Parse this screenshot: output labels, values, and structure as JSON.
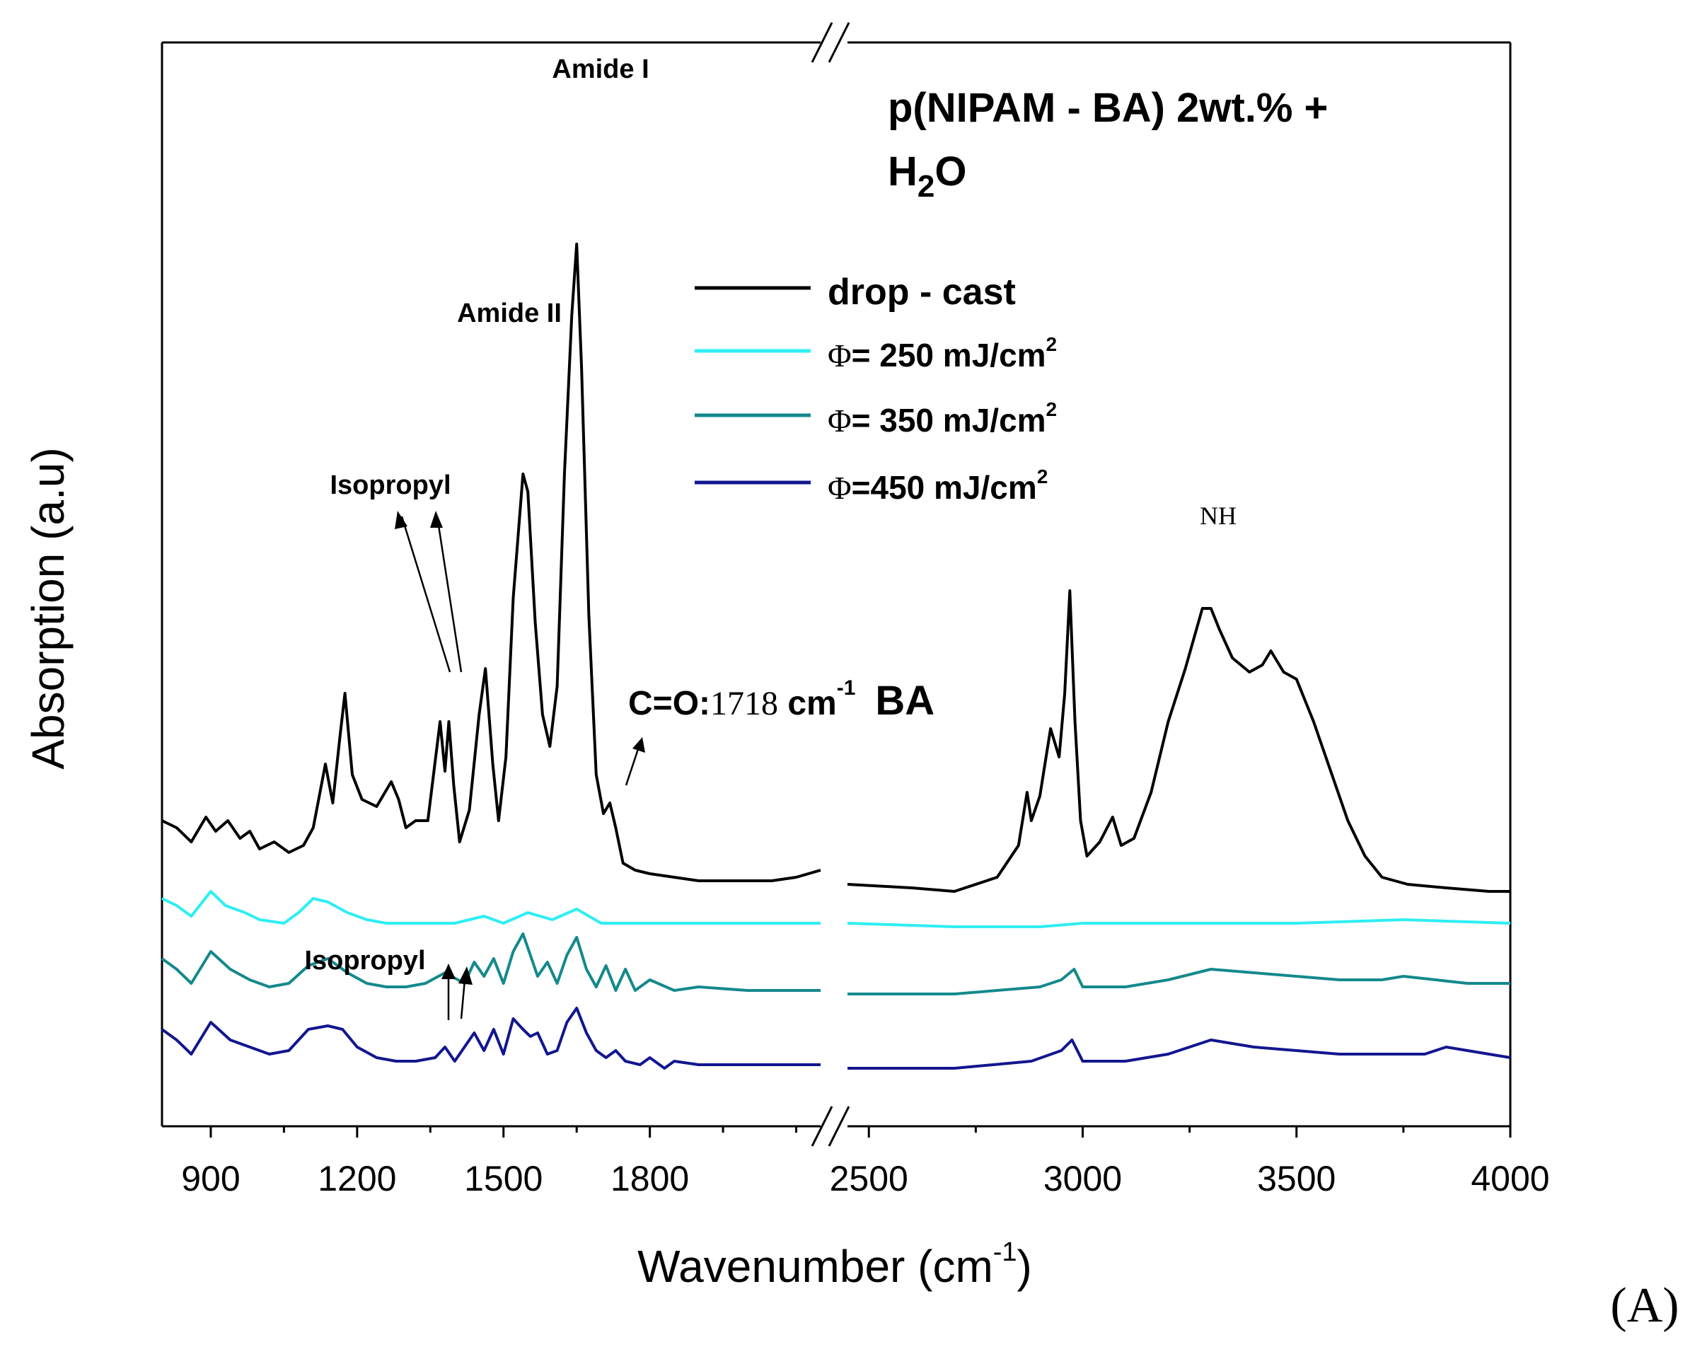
{
  "chart_data": {
    "type": "line",
    "title_line1": "p(NIPAM - BA) 2wt.% +",
    "title_line2": {
      "h": "H",
      "sub": "2",
      "o": "O"
    },
    "xlabel": {
      "text": "Wavenumber (cm",
      "sup": "-1",
      "close": ")"
    },
    "ylabel": "Absorption (a.u)",
    "panel_label": "(A)",
    "x_segments": [
      {
        "xlim": [
          800,
          2150
        ],
        "ticks": [
          900,
          1200,
          1500,
          1800
        ],
        "minor": [
          1050,
          1350,
          1650,
          1950,
          2100
        ]
      },
      {
        "xlim": [
          2450,
          4000
        ],
        "ticks": [
          2500,
          3000,
          3500,
          4000
        ],
        "minor": [
          2750,
          3250,
          3750
        ]
      }
    ],
    "tick_labels": [
      "900",
      "1200",
      "1500",
      "1800",
      "2500",
      "3000",
      "3500",
      "4000"
    ],
    "axis_break": "//",
    "legend": [
      {
        "name": "drop - cast",
        "color": "#000000"
      },
      {
        "phi": "Φ",
        "text": "= 250 mJ/cm",
        "sup": "2",
        "color": "#2EEEF4"
      },
      {
        "phi": "Φ",
        "text": "= 350 mJ/cm",
        "sup": "2",
        "color": "#14898C"
      },
      {
        "phi": "Φ",
        "text": "=450 mJ/cm",
        "sup": "2",
        "color": "#12168F"
      }
    ],
    "annotations": {
      "amide_i": "Amide I",
      "amide_ii": "Amide II",
      "isopropyl_top": "Isopropyl",
      "isopropyl_bottom": "Isopropyl",
      "nh": "NH",
      "co_label": "C=O:",
      "co_value": "1718",
      "co_unit": " cm",
      "co_sup": "-1",
      "co_ba": "BA"
    },
    "series": [
      {
        "name": "drop - cast",
        "color": "#000000",
        "baseline": 0.0,
        "points": [
          [
            800,
            0.12
          ],
          [
            830,
            0.1
          ],
          [
            860,
            0.06
          ],
          [
            890,
            0.13
          ],
          [
            910,
            0.09
          ],
          [
            935,
            0.12
          ],
          [
            960,
            0.07
          ],
          [
            980,
            0.09
          ],
          [
            1000,
            0.04
          ],
          [
            1030,
            0.06
          ],
          [
            1060,
            0.03
          ],
          [
            1090,
            0.05
          ],
          [
            1110,
            0.1
          ],
          [
            1135,
            0.28
          ],
          [
            1150,
            0.17
          ],
          [
            1165,
            0.36
          ],
          [
            1175,
            0.48
          ],
          [
            1190,
            0.25
          ],
          [
            1210,
            0.18
          ],
          [
            1240,
            0.16
          ],
          [
            1270,
            0.23
          ],
          [
            1285,
            0.18
          ],
          [
            1300,
            0.1
          ],
          [
            1320,
            0.12
          ],
          [
            1345,
            0.12
          ],
          [
            1370,
            0.4
          ],
          [
            1380,
            0.26
          ],
          [
            1388,
            0.4
          ],
          [
            1398,
            0.22
          ],
          [
            1410,
            0.06
          ],
          [
            1430,
            0.15
          ],
          [
            1450,
            0.42
          ],
          [
            1463,
            0.55
          ],
          [
            1478,
            0.28
          ],
          [
            1490,
            0.12
          ],
          [
            1505,
            0.3
          ],
          [
            1520,
            0.75
          ],
          [
            1540,
            1.1
          ],
          [
            1550,
            1.05
          ],
          [
            1565,
            0.68
          ],
          [
            1580,
            0.42
          ],
          [
            1595,
            0.33
          ],
          [
            1610,
            0.5
          ],
          [
            1625,
            1.1
          ],
          [
            1640,
            1.55
          ],
          [
            1650,
            1.75
          ],
          [
            1660,
            1.4
          ],
          [
            1675,
            0.7
          ],
          [
            1690,
            0.25
          ],
          [
            1705,
            0.14
          ],
          [
            1718,
            0.17
          ],
          [
            1730,
            0.1
          ],
          [
            1745,
            0.0
          ],
          [
            1770,
            -0.02
          ],
          [
            1800,
            -0.03
          ],
          [
            1850,
            -0.04
          ],
          [
            1900,
            -0.05
          ],
          [
            1950,
            -0.05
          ],
          [
            2000,
            -0.05
          ],
          [
            2050,
            -0.05
          ],
          [
            2100,
            -0.04
          ],
          [
            2150,
            -0.02
          ],
          [
            2450,
            -0.06
          ],
          [
            2600,
            -0.07
          ],
          [
            2700,
            -0.08
          ],
          [
            2800,
            -0.04
          ],
          [
            2850,
            0.05
          ],
          [
            2870,
            0.2
          ],
          [
            2880,
            0.12
          ],
          [
            2900,
            0.19
          ],
          [
            2925,
            0.38
          ],
          [
            2945,
            0.3
          ],
          [
            2958,
            0.48
          ],
          [
            2970,
            0.77
          ],
          [
            2982,
            0.4
          ],
          [
            2995,
            0.12
          ],
          [
            3010,
            0.02
          ],
          [
            3040,
            0.06
          ],
          [
            3070,
            0.13
          ],
          [
            3090,
            0.05
          ],
          [
            3120,
            0.07
          ],
          [
            3160,
            0.2
          ],
          [
            3200,
            0.4
          ],
          [
            3240,
            0.55
          ],
          [
            3280,
            0.72
          ],
          [
            3300,
            0.72
          ],
          [
            3320,
            0.66
          ],
          [
            3350,
            0.58
          ],
          [
            3390,
            0.54
          ],
          [
            3420,
            0.56
          ],
          [
            3440,
            0.6
          ],
          [
            3470,
            0.54
          ],
          [
            3500,
            0.52
          ],
          [
            3540,
            0.4
          ],
          [
            3580,
            0.26
          ],
          [
            3620,
            0.12
          ],
          [
            3660,
            0.02
          ],
          [
            3700,
            -0.04
          ],
          [
            3760,
            -0.06
          ],
          [
            3850,
            -0.07
          ],
          [
            3950,
            -0.08
          ],
          [
            4000,
            -0.08
          ]
        ]
      },
      {
        "name": "Φ = 250 mJ/cm2",
        "color": "#2EEEF4",
        "baseline": -0.12,
        "points": [
          [
            800,
            0.02
          ],
          [
            830,
            0.0
          ],
          [
            860,
            -0.03
          ],
          [
            900,
            0.04
          ],
          [
            930,
            0.0
          ],
          [
            970,
            -0.02
          ],
          [
            1000,
            -0.04
          ],
          [
            1050,
            -0.05
          ],
          [
            1080,
            -0.02
          ],
          [
            1110,
            0.02
          ],
          [
            1140,
            0.01
          ],
          [
            1180,
            -0.02
          ],
          [
            1220,
            -0.04
          ],
          [
            1260,
            -0.05
          ],
          [
            1300,
            -0.05
          ],
          [
            1400,
            -0.05
          ],
          [
            1460,
            -0.03
          ],
          [
            1500,
            -0.05
          ],
          [
            1550,
            -0.02
          ],
          [
            1600,
            -0.04
          ],
          [
            1650,
            -0.01
          ],
          [
            1700,
            -0.05
          ],
          [
            1800,
            -0.05
          ],
          [
            1900,
            -0.05
          ],
          [
            2150,
            -0.05
          ],
          [
            2450,
            -0.05
          ],
          [
            2700,
            -0.06
          ],
          [
            2900,
            -0.06
          ],
          [
            3000,
            -0.05
          ],
          [
            3300,
            -0.05
          ],
          [
            3500,
            -0.05
          ],
          [
            3750,
            -0.04
          ],
          [
            4000,
            -0.05
          ]
        ]
      },
      {
        "name": "Φ = 350 mJ/cm2",
        "color": "#14898C",
        "baseline": -0.3,
        "points": [
          [
            800,
            0.03
          ],
          [
            830,
            0.0
          ],
          [
            860,
            -0.04
          ],
          [
            900,
            0.05
          ],
          [
            940,
            0.0
          ],
          [
            980,
            -0.03
          ],
          [
            1020,
            -0.05
          ],
          [
            1060,
            -0.04
          ],
          [
            1100,
            0.01
          ],
          [
            1140,
            0.03
          ],
          [
            1180,
            -0.01
          ],
          [
            1220,
            -0.04
          ],
          [
            1260,
            -0.05
          ],
          [
            1300,
            -0.05
          ],
          [
            1340,
            -0.04
          ],
          [
            1380,
            -0.01
          ],
          [
            1420,
            -0.04
          ],
          [
            1440,
            0.02
          ],
          [
            1460,
            -0.02
          ],
          [
            1480,
            0.03
          ],
          [
            1500,
            -0.04
          ],
          [
            1520,
            0.05
          ],
          [
            1540,
            0.1
          ],
          [
            1555,
            0.04
          ],
          [
            1570,
            -0.02
          ],
          [
            1590,
            0.02
          ],
          [
            1610,
            -0.04
          ],
          [
            1630,
            0.04
          ],
          [
            1650,
            0.09
          ],
          [
            1670,
            0.0
          ],
          [
            1690,
            -0.05
          ],
          [
            1710,
            0.01
          ],
          [
            1730,
            -0.06
          ],
          [
            1750,
            0.0
          ],
          [
            1770,
            -0.06
          ],
          [
            1800,
            -0.03
          ],
          [
            1850,
            -0.06
          ],
          [
            1900,
            -0.05
          ],
          [
            2000,
            -0.06
          ],
          [
            2150,
            -0.06
          ],
          [
            2450,
            -0.07
          ],
          [
            2700,
            -0.07
          ],
          [
            2900,
            -0.05
          ],
          [
            2950,
            -0.03
          ],
          [
            2980,
            0.0
          ],
          [
            3000,
            -0.05
          ],
          [
            3100,
            -0.05
          ],
          [
            3200,
            -0.03
          ],
          [
            3300,
            0.0
          ],
          [
            3400,
            -0.01
          ],
          [
            3600,
            -0.03
          ],
          [
            3700,
            -0.03
          ],
          [
            3750,
            -0.02
          ],
          [
            3900,
            -0.04
          ],
          [
            4000,
            -0.04
          ]
        ]
      },
      {
        "name": "Φ =450 mJ/cm2",
        "color": "#12168F",
        "baseline": -0.5,
        "points": [
          [
            800,
            0.03
          ],
          [
            830,
            0.0
          ],
          [
            860,
            -0.04
          ],
          [
            900,
            0.05
          ],
          [
            940,
            0.0
          ],
          [
            980,
            -0.02
          ],
          [
            1020,
            -0.04
          ],
          [
            1060,
            -0.03
          ],
          [
            1100,
            0.03
          ],
          [
            1140,
            0.04
          ],
          [
            1170,
            0.03
          ],
          [
            1200,
            -0.02
          ],
          [
            1240,
            -0.05
          ],
          [
            1280,
            -0.06
          ],
          [
            1320,
            -0.06
          ],
          [
            1360,
            -0.05
          ],
          [
            1380,
            -0.02
          ],
          [
            1400,
            -0.06
          ],
          [
            1420,
            -0.02
          ],
          [
            1440,
            0.02
          ],
          [
            1460,
            -0.03
          ],
          [
            1480,
            0.03
          ],
          [
            1500,
            -0.04
          ],
          [
            1520,
            0.06
          ],
          [
            1540,
            0.03
          ],
          [
            1555,
            0.01
          ],
          [
            1570,
            0.02
          ],
          [
            1590,
            -0.04
          ],
          [
            1610,
            -0.03
          ],
          [
            1630,
            0.05
          ],
          [
            1650,
            0.09
          ],
          [
            1670,
            0.02
          ],
          [
            1690,
            -0.03
          ],
          [
            1710,
            -0.05
          ],
          [
            1730,
            -0.03
          ],
          [
            1750,
            -0.06
          ],
          [
            1780,
            -0.07
          ],
          [
            1800,
            -0.05
          ],
          [
            1830,
            -0.08
          ],
          [
            1850,
            -0.06
          ],
          [
            1900,
            -0.07
          ],
          [
            2000,
            -0.07
          ],
          [
            2150,
            -0.07
          ],
          [
            2450,
            -0.08
          ],
          [
            2700,
            -0.08
          ],
          [
            2880,
            -0.06
          ],
          [
            2950,
            -0.03
          ],
          [
            2975,
            0.0
          ],
          [
            3000,
            -0.06
          ],
          [
            3100,
            -0.06
          ],
          [
            3200,
            -0.04
          ],
          [
            3300,
            0.0
          ],
          [
            3400,
            -0.02
          ],
          [
            3600,
            -0.04
          ],
          [
            3800,
            -0.04
          ],
          [
            3850,
            -0.02
          ],
          [
            4000,
            -0.05
          ]
        ]
      }
    ]
  }
}
